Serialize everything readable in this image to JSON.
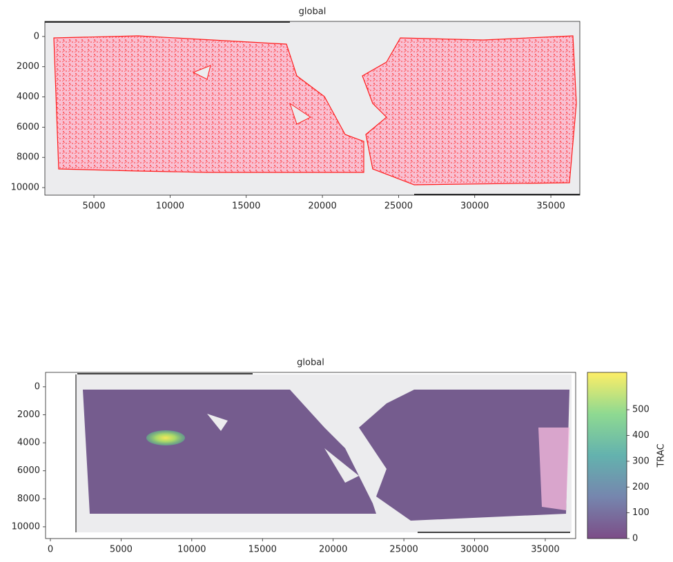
{
  "chart_data": [
    {
      "type": "image",
      "title": "global",
      "xlim": [
        1780,
        36900
      ],
      "ylim": [
        10500,
        -1000
      ],
      "xticks": [
        5000,
        10000,
        15000,
        20000,
        25000,
        30000,
        35000
      ],
      "yticks": [
        0,
        2000,
        4000,
        6000,
        8000,
        10000
      ]
    },
    {
      "type": "hexbin",
      "title": "global",
      "xlim": [
        -340,
        37150
      ],
      "ylim": [
        10840,
        -1030
      ],
      "xticks": [
        0,
        5000,
        10000,
        15000,
        20000,
        25000,
        30000,
        35000
      ],
      "yticks": [
        0,
        2000,
        4000,
        6000,
        8000,
        10000
      ],
      "colorbar": {
        "label": "TRAC",
        "lim": [
          0,
          645
        ],
        "ticks": [
          0,
          100,
          200,
          300,
          400,
          500
        ],
        "colormap": "viridis"
      }
    }
  ]
}
